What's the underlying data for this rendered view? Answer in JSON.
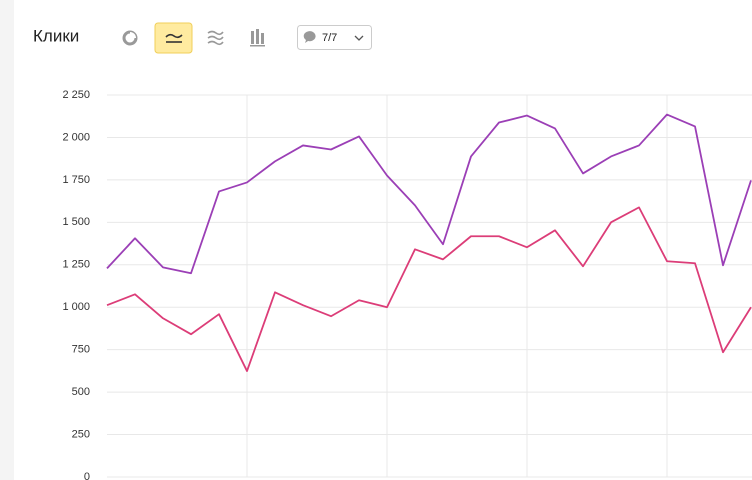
{
  "chart_data": {
    "type": "line",
    "title": "Клики",
    "series_toggle": "7/7",
    "categories": [
      null,
      null,
      null,
      null,
      null,
      null,
      null,
      null,
      null,
      null,
      null,
      null,
      null,
      null,
      null,
      null,
      null,
      null,
      null,
      null,
      null,
      null,
      null,
      null
    ],
    "series": [
      {
        "color": "#9b3fb6",
        "values": [
          1229,
          1406,
          1235,
          1200,
          1682,
          1735,
          1859,
          1953,
          1929,
          2006,
          1776,
          1600,
          1371,
          1888,
          2088,
          2129,
          2053,
          1788,
          1888,
          1953,
          2135,
          2065,
          1247,
          1747
        ]
      },
      {
        "color": "#dc3d78",
        "values": [
          1012,
          1076,
          935,
          841,
          959,
          624,
          1088,
          1012,
          947,
          1041,
          1000,
          1341,
          1282,
          1418,
          1418,
          1353,
          1453,
          1241,
          1500,
          1588,
          1271,
          1259,
          735,
          1000
        ]
      }
    ],
    "ylim": [
      0,
      2250
    ],
    "yticks": [
      0,
      250,
      500,
      750,
      {
        "value": 1000,
        "label": "1 000"
      },
      {
        "value": 1250,
        "label": "1 250"
      },
      {
        "value": 1500,
        "label": "1 500"
      },
      {
        "value": 1750,
        "label": "1 750"
      },
      {
        "value": 2000,
        "label": "2 000"
      },
      {
        "value": 2250,
        "label": "2 250"
      }
    ],
    "grid": true
  }
}
